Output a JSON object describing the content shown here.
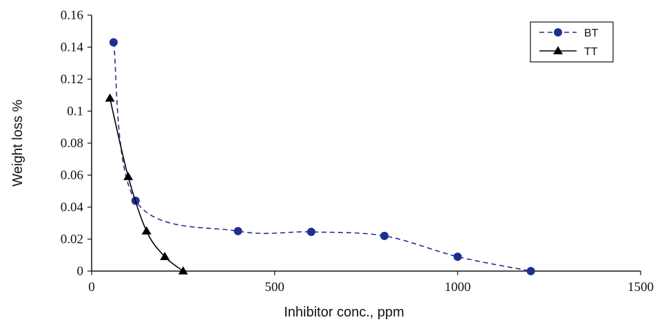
{
  "chart_data": {
    "type": "line",
    "title": "",
    "xlabel": "Inhibitor conc., ppm",
    "ylabel": "Weight loss %",
    "xlim": [
      0,
      1500
    ],
    "ylim": [
      0,
      0.16
    ],
    "xticks": [
      0,
      500,
      1000,
      1500
    ],
    "xtick_labels": [
      "0",
      "500",
      "1000",
      "1500"
    ],
    "yticks": [
      0,
      0.02,
      0.04,
      0.06,
      0.08,
      0.1,
      0.12,
      0.14,
      0.16
    ],
    "ytick_labels": [
      "0",
      "0.02",
      "0.04",
      "0.06",
      "0.08",
      "0.1",
      "0.12",
      "0.14",
      "0.16"
    ],
    "grid": false,
    "legend_position": "top-right",
    "series": [
      {
        "name": "BT",
        "marker": "circle",
        "line_style": "dashed",
        "color": "#1f2f8f",
        "x": [
          60,
          120,
          400,
          600,
          800,
          1000,
          1200
        ],
        "y": [
          0.143,
          0.044,
          0.025,
          0.0245,
          0.022,
          0.009,
          0.0
        ]
      },
      {
        "name": "TT",
        "marker": "triangle",
        "line_style": "solid",
        "color": "#000000",
        "x": [
          50,
          100,
          150,
          200,
          250
        ],
        "y": [
          0.108,
          0.059,
          0.025,
          0.009,
          0.0
        ]
      }
    ]
  }
}
